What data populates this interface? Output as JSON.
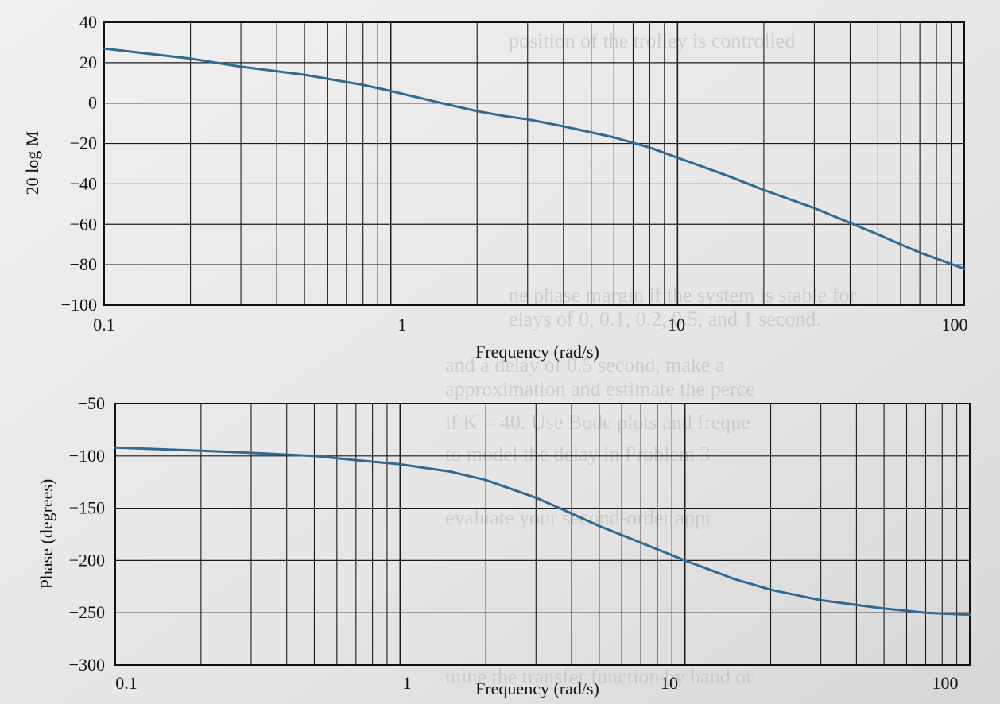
{
  "chart_data": [
    {
      "type": "line",
      "ylabel": "20 log M",
      "xlabel": "Frequency (rad/s)",
      "xscale": "log",
      "xlim": [
        0.1,
        100
      ],
      "ylim": [
        -100,
        40
      ],
      "x_ticks": [
        "0.1",
        "1",
        "10",
        "100"
      ],
      "y_ticks": [
        "40",
        "20",
        "0",
        "−20",
        "−40",
        "−60",
        "−80",
        "−100"
      ],
      "grid": true,
      "series": [
        {
          "color": "#2f6a93",
          "x": [
            0.1,
            0.2,
            0.3,
            0.5,
            0.8,
            1,
            1.5,
            2,
            2.5,
            3,
            4,
            5,
            6,
            8,
            10,
            15,
            20,
            30,
            50,
            70,
            100
          ],
          "y": [
            27,
            22,
            18,
            14,
            9,
            6,
            0,
            -4,
            -6.5,
            -8,
            -11.5,
            -14.5,
            -17,
            -22,
            -27,
            -36,
            -43,
            -52,
            -65,
            -74,
            -82
          ]
        }
      ]
    },
    {
      "type": "line",
      "ylabel": "Phase (degrees)",
      "xlabel": "Frequency (rad/s)",
      "xscale": "log",
      "xlim": [
        0.1,
        100
      ],
      "ylim": [
        -300,
        -50
      ],
      "x_ticks": [
        "0.1",
        "1",
        "10",
        "100"
      ],
      "y_ticks": [
        "−50",
        "−100",
        "−150",
        "−200",
        "−250",
        "−300"
      ],
      "grid": true,
      "series": [
        {
          "color": "#2f6a93",
          "x": [
            0.1,
            0.2,
            0.3,
            0.5,
            0.7,
            1,
            1.5,
            2,
            3,
            4,
            5,
            7,
            10,
            15,
            20,
            30,
            50,
            70,
            100
          ],
          "y": [
            -92,
            -95,
            -97,
            -100,
            -104,
            -108,
            -115,
            -123,
            -140,
            -155,
            -167,
            -183,
            -200,
            -218,
            -228,
            -238,
            -246,
            -250,
            -252
          ]
        }
      ]
    }
  ]
}
